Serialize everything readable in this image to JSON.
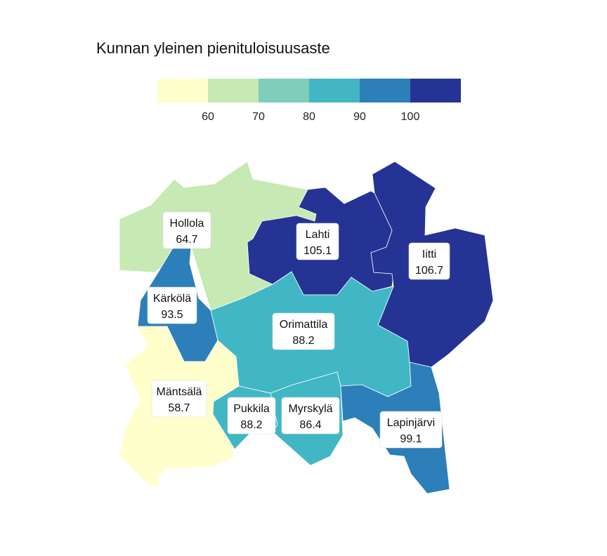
{
  "title": "Kunnan yleinen pienituloisuusaste",
  "legend": {
    "colors": [
      "#ffffcc",
      "#c7e9b4",
      "#7fcdbb",
      "#41b6c4",
      "#2c7fb8",
      "#253494"
    ],
    "ticks": [
      "60",
      "70",
      "80",
      "90",
      "100"
    ]
  },
  "municipalities": [
    {
      "name": "Hollola",
      "value": "64.7",
      "color": "#c7e9b4"
    },
    {
      "name": "Lahti",
      "value": "105.1",
      "color": "#253494"
    },
    {
      "name": "Iitti",
      "value": "106.7",
      "color": "#253494"
    },
    {
      "name": "Kärkölä",
      "value": "93.5",
      "color": "#2c7fb8"
    },
    {
      "name": "Orimattila",
      "value": "88.2",
      "color": "#41b6c4"
    },
    {
      "name": "Mäntsälä",
      "value": "58.7",
      "color": "#ffffcc"
    },
    {
      "name": "Pukkila",
      "value": "88.2",
      "color": "#41b6c4"
    },
    {
      "name": "Myrskylä",
      "value": "86.4",
      "color": "#41b6c4"
    },
    {
      "name": "Lapinjärvi",
      "value": "99.1",
      "color": "#2c7fb8"
    }
  ]
}
